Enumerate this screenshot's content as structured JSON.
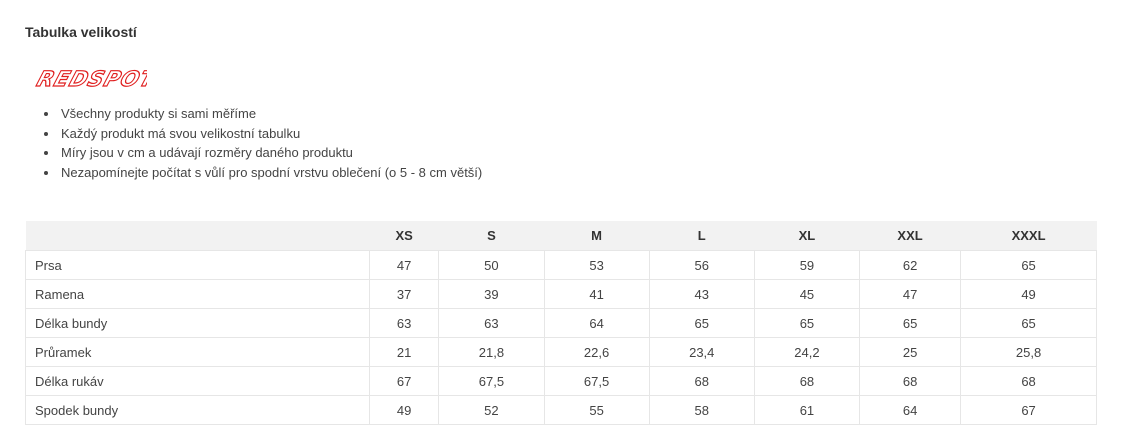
{
  "title": "Tabulka velikostí",
  "logo_text": "REDSPOT",
  "brand_color": "#e02020",
  "bullets": [
    "Všechny produkty si sami měříme",
    "Každý produkt má svou velikostní tabulku",
    "Míry jsou v cm a udávají rozměry daného produktu",
    "Nezapomínejte počítat s vůlí pro spodní vrstvu oblečení (o 5 - 8 cm větší)"
  ],
  "table": {
    "headers": [
      "",
      "XS",
      "S",
      "M",
      "L",
      "XL",
      "XXL",
      "XXXL"
    ],
    "rows": [
      {
        "label": "Prsa",
        "values": [
          "47",
          "50",
          "53",
          "56",
          "59",
          "62",
          "65"
        ]
      },
      {
        "label": "Ramena",
        "values": [
          "37",
          "39",
          "41",
          "43",
          "45",
          "47",
          "49"
        ]
      },
      {
        "label": "Délka bundy",
        "values": [
          "63",
          "63",
          "64",
          "65",
          "65",
          "65",
          "65"
        ]
      },
      {
        "label": "Průramek",
        "values": [
          "21",
          "21,8",
          "22,6",
          "23,4",
          "24,2",
          "25",
          "25,8"
        ]
      },
      {
        "label": "Délka rukáv",
        "values": [
          "67",
          "67,5",
          "67,5",
          "68",
          "68",
          "68",
          "68"
        ]
      },
      {
        "label": "Spodek bundy",
        "values": [
          "49",
          "52",
          "55",
          "58",
          "61",
          "64",
          "67"
        ]
      }
    ]
  }
}
